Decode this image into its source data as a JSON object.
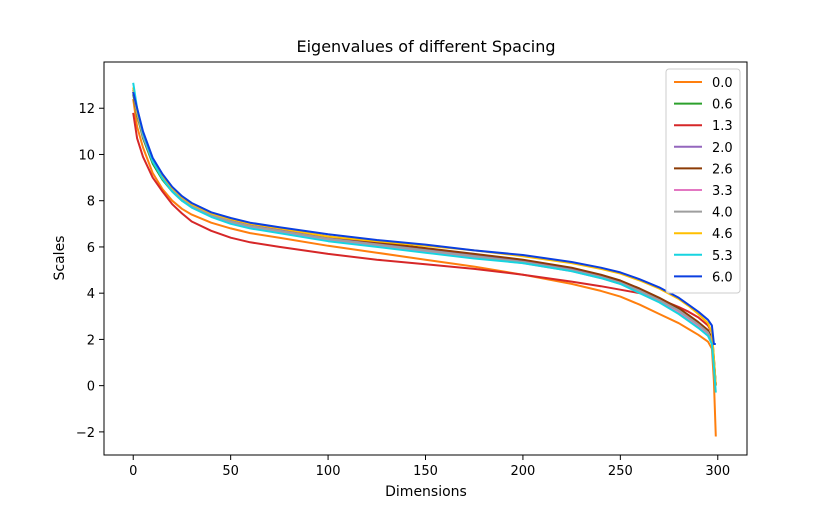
{
  "chart_data": {
    "type": "line",
    "title": "Eigenvalues of different Spacing",
    "xlabel": "Dimensions",
    "ylabel": "Scales",
    "xlim": [
      -15,
      315
    ],
    "ylim": [
      -3,
      14
    ],
    "xticks": [
      0,
      50,
      100,
      150,
      200,
      250,
      300
    ],
    "yticks": [
      -2,
      0,
      2,
      4,
      6,
      8,
      10,
      12
    ],
    "ytick_labels": [
      "−2",
      "0",
      "2",
      "4",
      "6",
      "8",
      "10",
      "12"
    ],
    "grid": false,
    "legend_position": "top-right",
    "x": [
      0,
      2,
      5,
      10,
      15,
      20,
      25,
      30,
      40,
      50,
      60,
      75,
      100,
      125,
      150,
      175,
      200,
      225,
      240,
      250,
      260,
      270,
      280,
      285,
      290,
      295,
      297,
      298,
      299
    ],
    "series": [
      {
        "name": "0.0",
        "color": "#ff7f0e",
        "values": [
          12.4,
          11.2,
          10.3,
          9.2,
          8.5,
          8.0,
          7.65,
          7.4,
          7.05,
          6.8,
          6.6,
          6.4,
          6.05,
          5.75,
          5.45,
          5.15,
          4.8,
          4.4,
          4.1,
          3.85,
          3.5,
          3.1,
          2.7,
          2.45,
          2.2,
          1.9,
          1.6,
          0.2,
          -2.2
        ]
      },
      {
        "name": "0.6",
        "color": "#2ca02c",
        "values": [
          12.6,
          11.7,
          10.7,
          9.6,
          8.9,
          8.4,
          8.0,
          7.75,
          7.35,
          7.1,
          6.9,
          6.7,
          6.35,
          6.1,
          5.85,
          5.6,
          5.35,
          5.0,
          4.7,
          4.45,
          4.1,
          3.7,
          3.2,
          2.9,
          2.6,
          2.25,
          1.9,
          1.0,
          0.0
        ]
      },
      {
        "name": "1.3",
        "color": "#d62728",
        "values": [
          11.8,
          10.7,
          9.9,
          9.0,
          8.4,
          7.85,
          7.45,
          7.1,
          6.7,
          6.4,
          6.2,
          6.0,
          5.7,
          5.45,
          5.25,
          5.05,
          4.8,
          4.5,
          4.3,
          4.15,
          4.0,
          3.75,
          3.4,
          3.2,
          2.95,
          2.6,
          2.3,
          1.2,
          0.0
        ]
      },
      {
        "name": "2.0",
        "color": "#9467bd",
        "values": [
          12.7,
          11.8,
          10.8,
          9.7,
          9.0,
          8.5,
          8.1,
          7.8,
          7.4,
          7.15,
          6.95,
          6.75,
          6.4,
          6.15,
          5.9,
          5.65,
          5.4,
          5.05,
          4.75,
          4.5,
          4.15,
          3.75,
          3.3,
          3.0,
          2.7,
          2.35,
          2.0,
          1.1,
          0.0
        ]
      },
      {
        "name": "2.6",
        "color": "#8c3b05",
        "values": [
          12.7,
          11.8,
          10.8,
          9.75,
          9.05,
          8.55,
          8.15,
          7.85,
          7.45,
          7.2,
          7.0,
          6.8,
          6.45,
          6.2,
          5.95,
          5.7,
          5.45,
          5.1,
          4.8,
          4.55,
          4.2,
          3.8,
          3.35,
          3.05,
          2.75,
          2.4,
          2.05,
          1.1,
          0.0
        ]
      },
      {
        "name": "3.3",
        "color": "#e377c2",
        "values": [
          12.8,
          11.8,
          10.8,
          9.7,
          9.0,
          8.45,
          8.05,
          7.75,
          7.35,
          7.05,
          6.85,
          6.65,
          6.3,
          6.05,
          5.8,
          5.55,
          5.3,
          4.95,
          4.65,
          4.4,
          4.05,
          3.65,
          3.2,
          2.9,
          2.6,
          2.25,
          1.9,
          1.0,
          0.0
        ]
      },
      {
        "name": "4.0",
        "color": "#9e9e9e",
        "values": [
          12.8,
          11.8,
          10.85,
          9.75,
          9.05,
          8.5,
          8.1,
          7.8,
          7.4,
          7.1,
          6.9,
          6.7,
          6.35,
          6.1,
          5.85,
          5.6,
          5.35,
          5.0,
          4.7,
          4.45,
          4.1,
          3.7,
          3.25,
          2.95,
          2.65,
          2.3,
          1.95,
          1.0,
          0.0
        ]
      },
      {
        "name": "4.6",
        "color": "#ffbf00",
        "values": [
          12.9,
          11.9,
          10.9,
          9.8,
          9.1,
          8.55,
          8.15,
          7.85,
          7.45,
          7.2,
          7.0,
          6.8,
          6.45,
          6.25,
          6.05,
          5.85,
          5.6,
          5.3,
          5.05,
          4.85,
          4.55,
          4.2,
          3.75,
          3.45,
          3.1,
          2.7,
          2.3,
          1.2,
          0.0
        ]
      },
      {
        "name": "5.3",
        "color": "#17d4e0",
        "values": [
          13.1,
          12.0,
          10.9,
          9.7,
          8.95,
          8.4,
          8.0,
          7.7,
          7.3,
          7.0,
          6.8,
          6.6,
          6.25,
          6.0,
          5.75,
          5.5,
          5.3,
          4.95,
          4.65,
          4.4,
          4.0,
          3.6,
          3.1,
          2.8,
          2.5,
          2.15,
          1.8,
          0.8,
          -0.3
        ]
      },
      {
        "name": "6.0",
        "color": "#0b3fe0",
        "values": [
          12.7,
          12.0,
          11.0,
          9.85,
          9.15,
          8.6,
          8.2,
          7.9,
          7.5,
          7.25,
          7.05,
          6.85,
          6.55,
          6.3,
          6.1,
          5.85,
          5.65,
          5.35,
          5.1,
          4.9,
          4.6,
          4.25,
          3.8,
          3.5,
          3.2,
          2.85,
          2.6,
          1.8,
          1.8
        ]
      }
    ]
  }
}
